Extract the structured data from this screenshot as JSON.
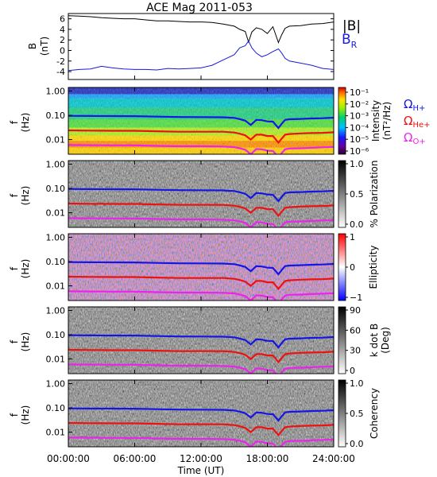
{
  "title": "ACE Mag 2011-053",
  "colors": {
    "Btotal": "#000000",
    "Br": "#1a1adc",
    "H": "#1515e6",
    "He": "#ee1111",
    "O": "#ee22ee"
  },
  "legend": {
    "B_label": "|B|",
    "Br_label": "B",
    "Br_sub": "R",
    "H_label": "Ω",
    "H_sub": "H+",
    "He_label": "Ω",
    "He_sub": "He+",
    "O_label": "Ω",
    "O_sub": "O+"
  },
  "chart_data": [
    {
      "type": "line",
      "panel": "field",
      "ylabel": "B",
      "yunit": "(nT)",
      "ylim": [
        -5.5,
        7
      ],
      "yticks": [
        "6",
        "4",
        "2",
        "0",
        "-2",
        "-4"
      ],
      "x": [
        0,
        1,
        2,
        3,
        4,
        5,
        6,
        7,
        8,
        9,
        10,
        11,
        12,
        13,
        14,
        15,
        15.5,
        16,
        16.3,
        16.6,
        17,
        17.5,
        18,
        18.5,
        19,
        19.3,
        19.6,
        20,
        21,
        22,
        23,
        24
      ],
      "series": [
        {
          "name": "|B|",
          "values": [
            6.6,
            6.5,
            6.4,
            6.2,
            6.1,
            6.0,
            6.0,
            5.8,
            5.6,
            5.6,
            5.5,
            5.4,
            5.4,
            5.3,
            5.0,
            4.6,
            4.0,
            3.6,
            1.6,
            3.5,
            4.3,
            4.0,
            3.2,
            4.5,
            1.5,
            3.0,
            4.2,
            4.6,
            4.7,
            5.0,
            5.1,
            5.4
          ]
        },
        {
          "name": "B_R",
          "values": [
            -3.8,
            -3.6,
            -3.5,
            -3.0,
            -3.3,
            -3.5,
            -3.6,
            -3.6,
            -3.7,
            -3.4,
            -3.5,
            -3.4,
            -3.3,
            -2.8,
            -1.8,
            -0.8,
            0.5,
            0.9,
            1.8,
            0.5,
            -0.5,
            -1.2,
            -0.8,
            -0.2,
            0.3,
            -0.5,
            -1.5,
            -2.0,
            -2.4,
            -2.8,
            -3.4,
            -3.6
          ]
        }
      ]
    },
    {
      "type": "heatmap",
      "panel": "psd",
      "ylabel": "f",
      "yunit": "(Hz)",
      "cbar_label": "Intensity",
      "cbar_unit": "(nT²/Hz)",
      "cbar_ticks": [
        "10⁻¹",
        "10⁻²",
        "10⁻³",
        "10⁻⁴",
        "10⁻⁵",
        "10⁻⁶"
      ],
      "cbar_range": [
        1e-06,
        0.3
      ],
      "cbar_scale": "log"
    },
    {
      "type": "heatmap",
      "panel": "polarization",
      "ylabel": "f",
      "yunit": "(Hz)",
      "cbar_label": "% Polarization",
      "cbar_ticks": [
        "1.0",
        "0.5",
        "0.0"
      ],
      "cbar_range": [
        0,
        1
      ]
    },
    {
      "type": "heatmap",
      "panel": "ellipticity",
      "ylabel": "f",
      "yunit": "(Hz)",
      "cbar_label": "Ellipticity",
      "cbar_ticks": [
        "1",
        "0",
        "−1"
      ],
      "cbar_range": [
        -1,
        1
      ]
    },
    {
      "type": "heatmap",
      "panel": "kdotb",
      "ylabel": "f",
      "yunit": "(Hz)",
      "cbar_label": "k dot B",
      "cbar_unit": "(Deg)",
      "cbar_ticks": [
        "90",
        "60",
        "30",
        "0"
      ],
      "cbar_range": [
        0,
        90
      ]
    },
    {
      "type": "heatmap",
      "panel": "coherency",
      "ylabel": "f",
      "yunit": "(Hz)",
      "cbar_label": "Coherency",
      "cbar_ticks": [
        "1.0",
        "0.5",
        "0.0"
      ],
      "cbar_range": [
        0,
        1
      ]
    }
  ],
  "freq_axis": {
    "ticks": [
      "1.00",
      "0.10",
      "0.01"
    ],
    "values": [
      1.0,
      0.1,
      0.01
    ],
    "ylim": [
      0.0025,
      1.4
    ],
    "scale": "log"
  },
  "gyro_lines": {
    "x": [
      0,
      2,
      4,
      6,
      8,
      10,
      12,
      14,
      15,
      15.5,
      16,
      16.5,
      17,
      17.5,
      18,
      18.5,
      19,
      19.3,
      19.6,
      20,
      21,
      22,
      23,
      24
    ],
    "H": [
      0.095,
      0.094,
      0.093,
      0.092,
      0.088,
      0.085,
      0.084,
      0.083,
      0.078,
      0.07,
      0.06,
      0.04,
      0.065,
      0.063,
      0.056,
      0.055,
      0.03,
      0.045,
      0.065,
      0.069,
      0.071,
      0.074,
      0.076,
      0.08
    ],
    "He": [
      0.024,
      0.0235,
      0.023,
      0.023,
      0.022,
      0.021,
      0.021,
      0.021,
      0.0195,
      0.0175,
      0.015,
      0.01,
      0.016,
      0.016,
      0.014,
      0.014,
      0.0075,
      0.011,
      0.016,
      0.017,
      0.018,
      0.0185,
      0.019,
      0.02
    ],
    "O": [
      0.006,
      0.0059,
      0.0058,
      0.0058,
      0.0055,
      0.0053,
      0.0053,
      0.0052,
      0.0049,
      0.0044,
      0.0038,
      0.0025,
      0.0041,
      0.004,
      0.0035,
      0.0034,
      0.0019,
      0.0028,
      0.004,
      0.0043,
      0.0044,
      0.0046,
      0.0048,
      0.005
    ]
  },
  "x_axis": {
    "label": "Time (UT)",
    "ticks": [
      "00:00:00",
      "06:00:00",
      "12:00:00",
      "18:00:00",
      "24:00:00"
    ],
    "values": [
      0,
      6,
      12,
      18,
      24
    ],
    "xlim": [
      0,
      24
    ]
  }
}
